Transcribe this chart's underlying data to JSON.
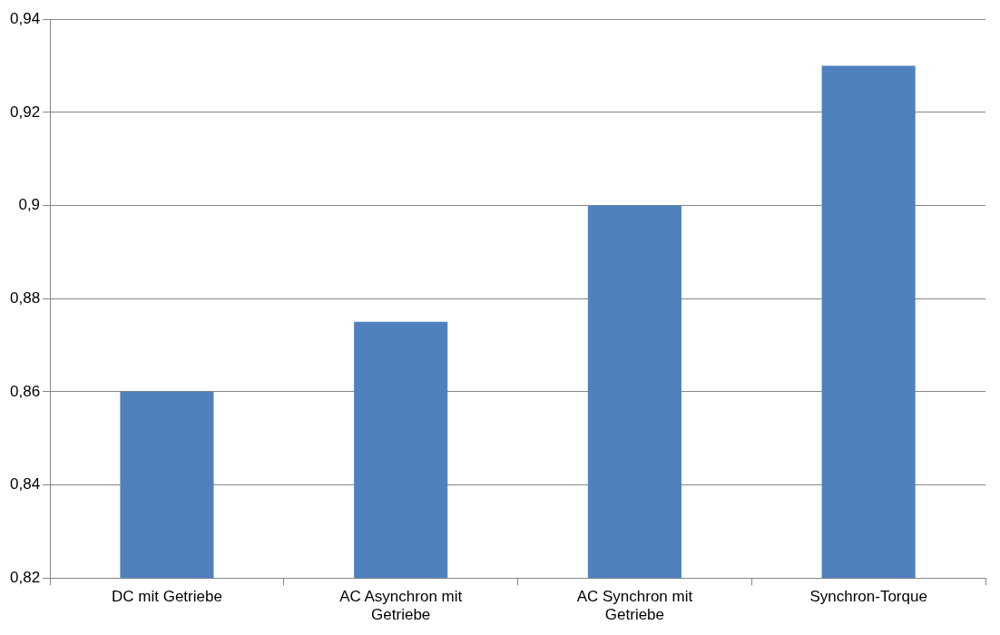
{
  "chart_data": {
    "type": "bar",
    "categories": [
      "DC mit Getriebe",
      "AC Asynchron mit Getriebe",
      "AC Synchron mit Getriebe",
      "Synchron-Torque"
    ],
    "values": [
      0.86,
      0.875,
      0.9,
      0.93
    ],
    "color": "#4f81bd",
    "ylim": [
      0.82,
      0.94
    ],
    "yticks": [
      {
        "value": 0.82,
        "label": "0,82"
      },
      {
        "value": 0.84,
        "label": "0,84"
      },
      {
        "value": 0.86,
        "label": "0,86"
      },
      {
        "value": 0.88,
        "label": "0,88"
      },
      {
        "value": 0.9,
        "label": "0,9"
      },
      {
        "value": 0.92,
        "label": "0,92"
      },
      {
        "value": 0.94,
        "label": "0,94"
      }
    ],
    "grid": "y",
    "legend": false
  }
}
